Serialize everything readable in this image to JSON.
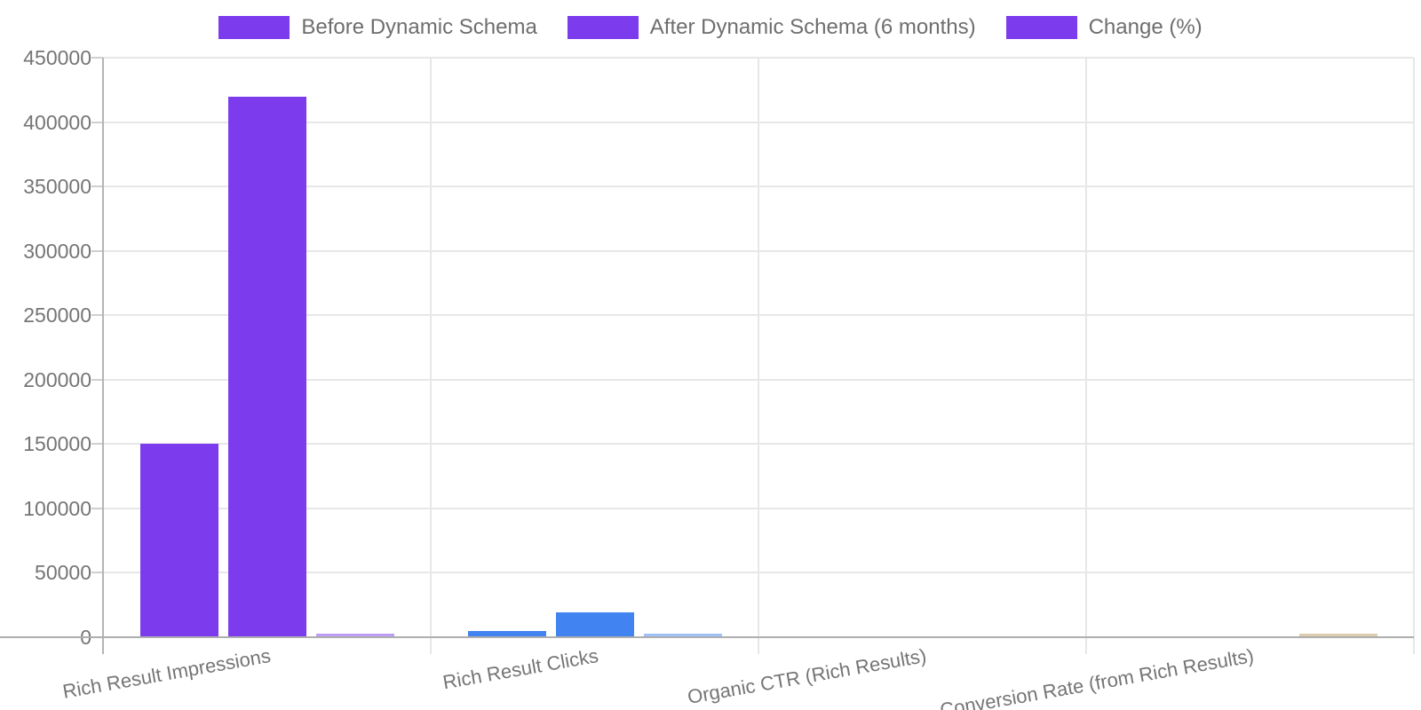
{
  "chart_data": {
    "type": "bar",
    "title": "",
    "xlabel": "",
    "ylabel": "",
    "categories": [
      "Rich Result Impressions",
      "Rich Result Clicks",
      "Organic CTR (Rich Results)",
      "Conversion Rate (from Rich Results)"
    ],
    "series": [
      {
        "name": "Before Dynamic Schema",
        "values": [
          150000,
          4500,
          3,
          1.2
        ]
      },
      {
        "name": "After Dynamic Schema (6 months)",
        "values": [
          420000,
          18900,
          4.5,
          3.5
        ]
      },
      {
        "name": "Change (%)",
        "values": [
          180,
          320,
          50,
          192
        ]
      }
    ],
    "category_colors": [
      "#7c3bec",
      "#4183f0",
      "#c9a227",
      "#b99a5f"
    ],
    "legend_swatch_color": "#7c3bec",
    "legend_position": "top",
    "grid": true,
    "ylim": [
      0,
      450000
    ],
    "y_tick_step": 50000,
    "y_ticks": [
      "0",
      "50000",
      "100000",
      "150000",
      "200000",
      "250000",
      "300000",
      "350000",
      "400000",
      "450000"
    ]
  },
  "colors": {
    "bar_purple": "#7c3bec",
    "bar_blue": "#4183f0",
    "axis_line": "#aeaeae",
    "gridline": "#e7e7e7",
    "tick_text": "#757575",
    "legend_text": "#6e6e6e",
    "background": "#ffffff"
  }
}
